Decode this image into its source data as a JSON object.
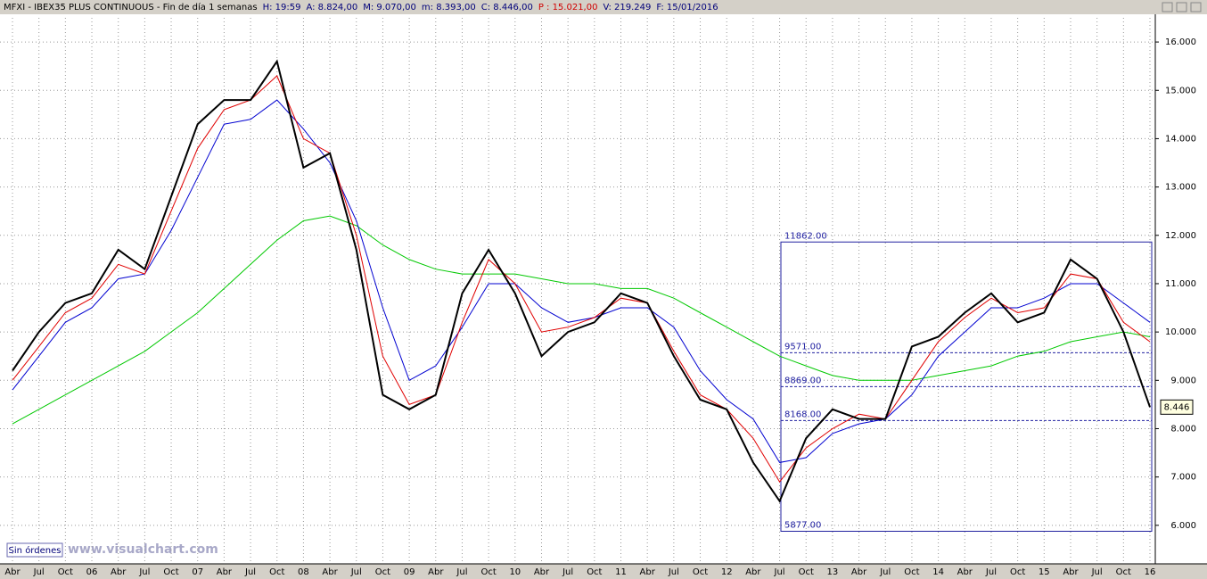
{
  "header": {
    "title": "MFXI - IBEX35 PLUS CONTINUOUS - Fin de día 1 semanas",
    "fields": [
      "H: 19:59",
      "A: 8.824,00",
      "M: 9.070,00",
      "m: 8.393,00",
      "C: 8.446,00",
      "P : 15.021,00",
      "V: 219.249",
      "F: 15/01/2016"
    ]
  },
  "footer": {
    "status": "Sin órdenes",
    "site": "www.visualchart.com"
  },
  "chart_data": {
    "type": "line",
    "categories": [
      "Abr",
      "Jul",
      "Oct",
      "06",
      "Abr",
      "Jul",
      "Oct",
      "07",
      "Abr",
      "Jul",
      "Oct",
      "08",
      "Abr",
      "Jul",
      "Oct",
      "09",
      "Abr",
      "Jul",
      "Oct",
      "10",
      "Abr",
      "Jul",
      "Oct",
      "11",
      "Abr",
      "Jul",
      "Oct",
      "12",
      "Abr",
      "Jul",
      "Oct",
      "13",
      "Abr",
      "Jul",
      "Oct",
      "14",
      "Abr",
      "Jul",
      "Oct",
      "15",
      "Abr",
      "Jul",
      "Oct",
      "16"
    ],
    "series": [
      {
        "color": "#000000",
        "values": [
          9200,
          10000,
          10600,
          10800,
          11700,
          11300,
          12800,
          14300,
          14800,
          14800,
          15600,
          13400,
          13700,
          11700,
          8700,
          8400,
          8700,
          10800,
          11700,
          10800,
          9500,
          10000,
          10200,
          10800,
          10600,
          9500,
          8600,
          8400,
          7300,
          6500,
          7800,
          8400,
          8200,
          8200,
          9700,
          9900,
          10400,
          10800,
          10200,
          10400,
          11500,
          11100,
          10000,
          8446
        ]
      },
      {
        "color": "#e00000",
        "values": [
          9000,
          9700,
          10400,
          10700,
          11400,
          11200,
          12500,
          13800,
          14600,
          14800,
          15300,
          14000,
          13700,
          12000,
          9500,
          8500,
          8700,
          10200,
          11500,
          11000,
          10000,
          10100,
          10300,
          10700,
          10600,
          9600,
          8700,
          8400,
          7800,
          6900,
          7600,
          8000,
          8300,
          8200,
          9000,
          9800,
          10300,
          10700,
          10400,
          10500,
          11200,
          11100,
          10200,
          9800
        ]
      },
      {
        "color": "#0000d0",
        "values": [
          8800,
          9500,
          10200,
          10500,
          11100,
          11200,
          12100,
          13200,
          14300,
          14400,
          14800,
          14200,
          13500,
          12300,
          10500,
          9000,
          9300,
          10100,
          11000,
          11000,
          10500,
          10200,
          10300,
          10500,
          10500,
          10100,
          9200,
          8600,
          8200,
          7300,
          7400,
          7900,
          8100,
          8200,
          8700,
          9500,
          10000,
          10500,
          10500,
          10700,
          11000,
          11000,
          10600,
          10200
        ]
      },
      {
        "color": "#00c800",
        "values": [
          8100,
          8400,
          8700,
          9000,
          9300,
          9600,
          10000,
          10400,
          10900,
          11400,
          11900,
          12300,
          12400,
          12200,
          11800,
          11500,
          11300,
          11200,
          11200,
          11200,
          11100,
          11000,
          11000,
          10900,
          10900,
          10700,
          10400,
          10100,
          9800,
          9500,
          9300,
          9100,
          9000,
          9000,
          9000,
          9100,
          9200,
          9300,
          9500,
          9600,
          9800,
          9900,
          10000,
          9900
        ]
      }
    ],
    "ylim": [
      5240,
      16500
    ],
    "yticks": [
      {
        "value": 6000,
        "label": "6.000"
      },
      {
        "value": 7000,
        "label": "7.000"
      },
      {
        "value": 8000,
        "label": "8.000"
      },
      {
        "value": 9000,
        "label": "9.000"
      },
      {
        "value": 10000,
        "label": "10.000"
      },
      {
        "value": 11000,
        "label": "11.000"
      },
      {
        "value": 12000,
        "label": "12.000"
      },
      {
        "value": 13000,
        "label": "13.000"
      },
      {
        "value": 14000,
        "label": "14.000"
      },
      {
        "value": 15000,
        "label": "15.000"
      },
      {
        "value": 16000,
        "label": "16.000"
      }
    ],
    "grid": true,
    "levels": [
      {
        "value": 11862,
        "label": "11862.00"
      },
      {
        "value": 9571,
        "label": "9571.00"
      },
      {
        "value": 8869,
        "label": "8869.00"
      },
      {
        "value": 8168,
        "label": "8168.00"
      },
      {
        "value": 5877,
        "label": "5877.00"
      }
    ],
    "last_price": {
      "value": 8446,
      "label": "8.446"
    }
  }
}
